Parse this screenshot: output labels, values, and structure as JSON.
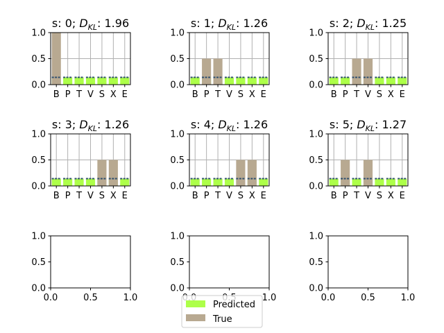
{
  "colors": {
    "predicted": "#adff49",
    "true": "#b8a991",
    "predicted_edge": "#2f4f6f",
    "grid": "#b0b0b0",
    "axes": "#000000"
  },
  "legend": {
    "predicted_label": "Predicted",
    "true_label": "True",
    "placement": "bottom-center"
  },
  "chart_data": [
    {
      "type": "bar",
      "title_prefix": "s: 0; ",
      "title_symbol": "D",
      "title_sub": "KL",
      "title_value": ": 1.96",
      "categories": [
        "B",
        "P",
        "T",
        "V",
        "S",
        "X",
        "E"
      ],
      "series": [
        {
          "name": "Predicted",
          "values": [
            0.14,
            0.14,
            0.14,
            0.14,
            0.14,
            0.14,
            0.14
          ]
        },
        {
          "name": "True",
          "values": [
            1.0,
            0,
            0,
            0,
            0,
            0,
            0
          ]
        }
      ],
      "ylim": [
        0,
        1
      ],
      "yticks": [
        "0.0",
        "0.5",
        "1.0"
      ],
      "grid": true
    },
    {
      "type": "bar",
      "title_prefix": "s: 1; ",
      "title_symbol": "D",
      "title_sub": "KL",
      "title_value": ": 1.26",
      "categories": [
        "B",
        "P",
        "T",
        "V",
        "S",
        "X",
        "E"
      ],
      "series": [
        {
          "name": "Predicted",
          "values": [
            0.14,
            0.14,
            0.14,
            0.14,
            0.14,
            0.14,
            0.14
          ]
        },
        {
          "name": "True",
          "values": [
            0,
            0.5,
            0.5,
            0,
            0,
            0,
            0
          ]
        }
      ],
      "ylim": [
        0,
        1
      ],
      "yticks": [
        "0.0",
        "0.5",
        "1.0"
      ],
      "grid": true
    },
    {
      "type": "bar",
      "title_prefix": "s: 2; ",
      "title_symbol": "D",
      "title_sub": "KL",
      "title_value": ": 1.25",
      "categories": [
        "B",
        "P",
        "T",
        "V",
        "S",
        "X",
        "E"
      ],
      "series": [
        {
          "name": "Predicted",
          "values": [
            0.14,
            0.14,
            0.14,
            0.14,
            0.14,
            0.14,
            0.14
          ]
        },
        {
          "name": "True",
          "values": [
            0,
            0,
            0.5,
            0.5,
            0,
            0,
            0
          ]
        }
      ],
      "ylim": [
        0,
        1
      ],
      "yticks": [
        "0.0",
        "0.5",
        "1.0"
      ],
      "grid": true
    },
    {
      "type": "bar",
      "title_prefix": "s: 3; ",
      "title_symbol": "D",
      "title_sub": "KL",
      "title_value": ": 1.26",
      "categories": [
        "B",
        "P",
        "T",
        "V",
        "S",
        "X",
        "E"
      ],
      "series": [
        {
          "name": "Predicted",
          "values": [
            0.14,
            0.14,
            0.14,
            0.14,
            0.14,
            0.14,
            0.14
          ]
        },
        {
          "name": "True",
          "values": [
            0,
            0,
            0,
            0,
            0.5,
            0.5,
            0
          ]
        }
      ],
      "ylim": [
        0,
        1
      ],
      "yticks": [
        "0.0",
        "0.5",
        "1.0"
      ],
      "grid": true
    },
    {
      "type": "bar",
      "title_prefix": "s: 4; ",
      "title_symbol": "D",
      "title_sub": "KL",
      "title_value": ": 1.26",
      "categories": [
        "B",
        "P",
        "T",
        "V",
        "S",
        "X",
        "E"
      ],
      "series": [
        {
          "name": "Predicted",
          "values": [
            0.14,
            0.14,
            0.14,
            0.14,
            0.14,
            0.14,
            0.14
          ]
        },
        {
          "name": "True",
          "values": [
            0,
            0,
            0,
            0,
            0.5,
            0.5,
            0
          ]
        }
      ],
      "ylim": [
        0,
        1
      ],
      "yticks": [
        "0.0",
        "0.5",
        "1.0"
      ],
      "grid": true
    },
    {
      "type": "bar",
      "title_prefix": "s: 5; ",
      "title_symbol": "D",
      "title_sub": "KL",
      "title_value": ": 1.27",
      "categories": [
        "B",
        "P",
        "T",
        "V",
        "S",
        "X",
        "E"
      ],
      "series": [
        {
          "name": "Predicted",
          "values": [
            0.14,
            0.14,
            0.14,
            0.14,
            0.14,
            0.14,
            0.14
          ]
        },
        {
          "name": "True",
          "values": [
            0,
            0.5,
            0,
            0.5,
            0,
            0,
            0
          ]
        }
      ],
      "ylim": [
        0,
        1
      ],
      "yticks": [
        "0.0",
        "0.5",
        "1.0"
      ],
      "grid": true
    },
    {
      "type": "bar",
      "categories": [],
      "series": [],
      "xlim": [
        0,
        1
      ],
      "ylim": [
        0,
        1
      ],
      "xticks": [
        "0.0",
        "0.5",
        "1.0"
      ],
      "yticks": [
        "0.0",
        "0.5",
        "1.0"
      ],
      "grid": false
    },
    {
      "type": "bar",
      "categories": [],
      "series": [],
      "xlim": [
        0,
        1
      ],
      "ylim": [
        0,
        1
      ],
      "xticks": [
        "0.0",
        "0.5",
        "1.0"
      ],
      "yticks": [
        "0.0",
        "0.5",
        "1.0"
      ],
      "grid": false
    },
    {
      "type": "bar",
      "categories": [],
      "series": [],
      "xlim": [
        0,
        1
      ],
      "ylim": [
        0,
        1
      ],
      "xticks": [
        "0.0",
        "0.5",
        "1.0"
      ],
      "yticks": [
        "0.0",
        "0.5",
        "1.0"
      ],
      "grid": false
    }
  ]
}
